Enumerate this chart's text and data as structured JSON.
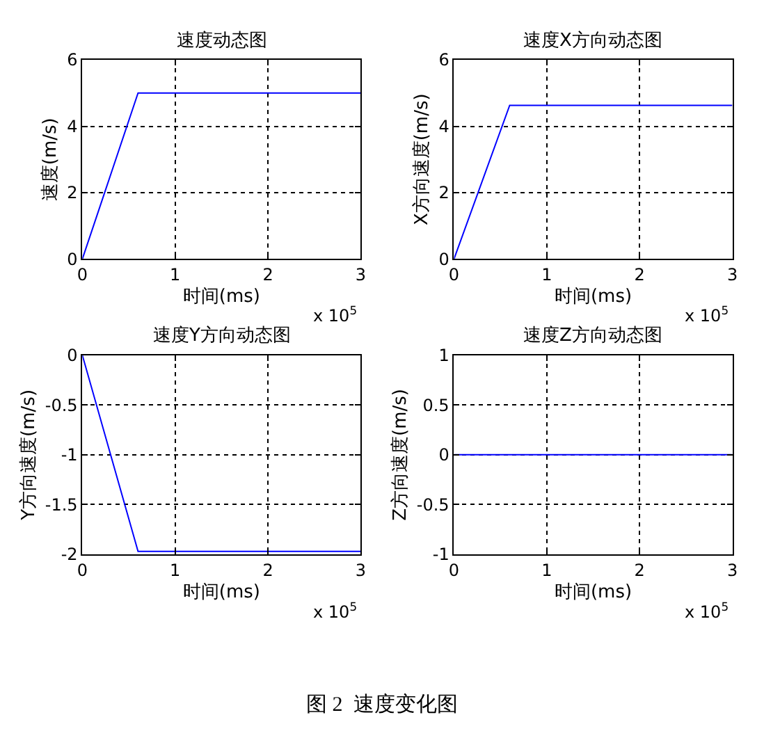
{
  "chart_data": [
    {
      "type": "line",
      "title": "速度动态图",
      "xlabel": "时间(ms)",
      "ylabel": "速度(m/s)",
      "x": [
        0,
        0.6,
        3
      ],
      "series": [
        {
          "color": "#0000ff",
          "values": [
            0,
            5,
            5
          ]
        }
      ],
      "xlim": [
        0,
        3
      ],
      "xticks": [
        0,
        1,
        2,
        3
      ],
      "ylim": [
        0,
        6
      ],
      "yticks": [
        0,
        2,
        4,
        6
      ],
      "grid": true,
      "annotations": [
        "x 10$^{5}$"
      ]
    },
    {
      "type": "line",
      "title": "速度X方向动态图",
      "xlabel": "时间(ms)",
      "ylabel": "X方向速度(m/s)",
      "x": [
        0,
        0.6,
        3
      ],
      "series": [
        {
          "color": "#0000ff",
          "values": [
            0,
            4.63,
            4.63
          ]
        }
      ],
      "xlim": [
        0,
        3
      ],
      "xticks": [
        0,
        1,
        2,
        3
      ],
      "ylim": [
        0,
        6
      ],
      "yticks": [
        0,
        2,
        4,
        6
      ],
      "grid": true,
      "annotations": [
        "x 10$^{5}$"
      ]
    },
    {
      "type": "line",
      "title": "速度Y方向动态图",
      "xlabel": "时间(ms)",
      "ylabel": "Y方向速度(m/s)",
      "x": [
        0,
        0.6,
        3
      ],
      "series": [
        {
          "color": "#0000ff",
          "values": [
            0,
            -1.97,
            -1.97
          ]
        }
      ],
      "xlim": [
        0,
        3
      ],
      "xticks": [
        0,
        1,
        2,
        3
      ],
      "ylim": [
        -2,
        0
      ],
      "yticks": [
        -2,
        -1.5,
        -1,
        -0.5,
        0
      ],
      "grid": true,
      "annotations": [
        "x 10$^{5}$"
      ]
    },
    {
      "type": "line",
      "title": "速度Z方向动态图",
      "xlabel": "时间(ms)",
      "ylabel": "Z方向速度(m/s)",
      "x": [
        0,
        0.6,
        3
      ],
      "series": [
        {
          "color": "#0000ff",
          "values": [
            0,
            0,
            0
          ]
        }
      ],
      "xlim": [
        0,
        3
      ],
      "xticks": [
        0,
        1,
        2,
        3
      ],
      "ylim": [
        -1,
        1
      ],
      "yticks": [
        -1,
        -0.5,
        0,
        0.5,
        1
      ],
      "grid": true,
      "annotations": [
        "x 10$^{5}$",
        "图 2  速度变化图"
      ]
    }
  ]
}
